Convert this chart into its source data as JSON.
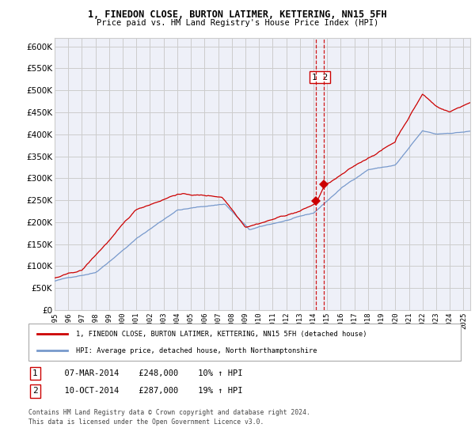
{
  "title1": "1, FINEDON CLOSE, BURTON LATIMER, KETTERING, NN15 5FH",
  "title2": "Price paid vs. HM Land Registry's House Price Index (HPI)",
  "legend_red": "1, FINEDON CLOSE, BURTON LATIMER, KETTERING, NN15 5FH (detached house)",
  "legend_blue": "HPI: Average price, detached house, North Northamptonshire",
  "annotation1_label": "1",
  "annotation1_date": "07-MAR-2014",
  "annotation1_price": "£248,000",
  "annotation1_hpi": "10% ↑ HPI",
  "annotation2_label": "2",
  "annotation2_date": "10-OCT-2014",
  "annotation2_price": "£287,000",
  "annotation2_hpi": "19% ↑ HPI",
  "footnote1": "Contains HM Land Registry data © Crown copyright and database right 2024.",
  "footnote2": "This data is licensed under the Open Government Licence v3.0.",
  "ylim": [
    0,
    620000
  ],
  "yticks": [
    0,
    50000,
    100000,
    150000,
    200000,
    250000,
    300000,
    350000,
    400000,
    450000,
    500000,
    550000,
    600000
  ],
  "red_color": "#cc0000",
  "blue_color": "#7799cc",
  "dashed_line_color": "#cc0000",
  "background_color": "#ffffff",
  "grid_color": "#cccccc",
  "sale1_x": 2014.18,
  "sale1_y": 248000,
  "sale2_x": 2014.78,
  "sale2_y": 287000,
  "xmin": 1995,
  "xmax": 2025.5
}
